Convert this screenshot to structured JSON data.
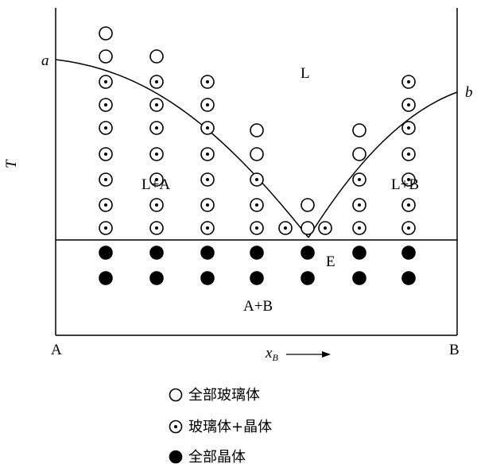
{
  "axes": {
    "y_label": "T",
    "x_label": "x",
    "x_label_sub": "B",
    "left_label": "A",
    "right_label": "B"
  },
  "curve_labels": {
    "a": "a",
    "b": "b"
  },
  "regions": {
    "liquid": "L",
    "l_plus_a": "L+A",
    "l_plus_b": "L+B",
    "eutectic": "E",
    "a_plus_b": "A+B"
  },
  "legend": [
    {
      "marker": "open-circle",
      "label": "全部玻璃体"
    },
    {
      "marker": "dotted-circle",
      "label": "玻璃体+晶体"
    },
    {
      "marker": "filled-circle",
      "label": "全部晶体"
    }
  ],
  "colors": {
    "ink": "#000000",
    "background": "#ffffff"
  }
}
